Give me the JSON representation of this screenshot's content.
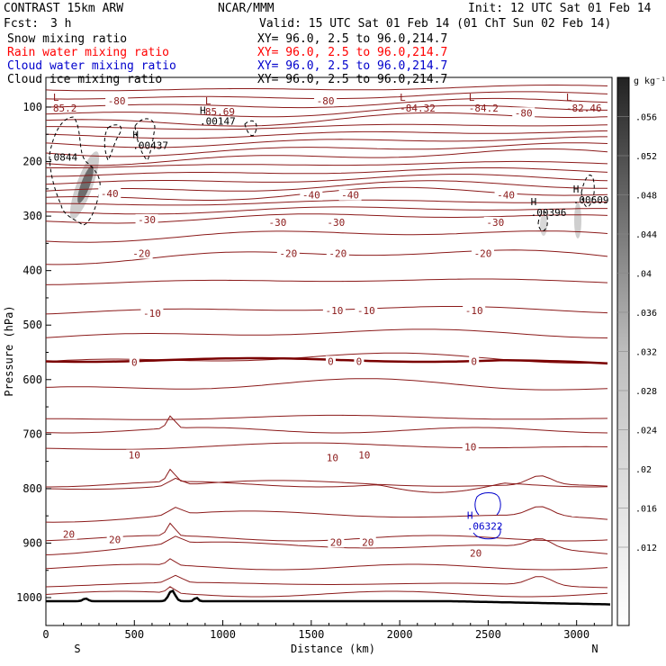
{
  "header": {
    "model": "CONTRAST 15km ARW",
    "org": "NCAR/MMM",
    "init": "Init: 12 UTC Sat 01 Feb 14",
    "fcst_label": "Fcst:",
    "fcst_value": "3 h",
    "valid": "Valid: 15 UTC Sat 01 Feb 14 (01 ChT Sun 02 Feb 14)"
  },
  "legend": {
    "items": [
      {
        "label": "Snow mixing ratio",
        "xy": "XY=  96.0,  2.5 to  96.0,214.7",
        "color": "#000000"
      },
      {
        "label": "Rain water mixing ratio",
        "xy": "XY=  96.0,  2.5 to  96.0,214.7",
        "color": "#ff0000"
      },
      {
        "label": "Cloud water mixing ratio",
        "xy": "XY=  96.0,  2.5 to  96.0,214.7",
        "color": "#0000cc"
      },
      {
        "label": "Cloud ice mixing ratio",
        "xy": "XY=  96.0,  2.5 to  96.0,214.7",
        "color": "#000000"
      }
    ]
  },
  "colors": {
    "temperature": "#8b1a1a",
    "zero_isotherm": "#7a0000",
    "cloud_water": "#0000cc",
    "ice": "#000000",
    "terrain": "#000000"
  },
  "chart_data": {
    "type": "contour_cross_section",
    "xlabel": "Distance (km)",
    "ylabel": "Pressure (hPa)",
    "xlim": [
      0,
      3200
    ],
    "ylim": [
      1050,
      50
    ],
    "xticks": [
      0,
      500,
      1000,
      1500,
      2000,
      2500,
      3000
    ],
    "yticks": [
      100,
      200,
      300,
      400,
      500,
      600,
      700,
      800,
      900,
      1000
    ],
    "endpoints": {
      "left": "S",
      "right": "N"
    },
    "temperature_levels_c": [
      -80,
      -40,
      -30,
      -20,
      -10,
      0,
      10,
      20
    ],
    "temperature_labels": [
      {
        "text": "-80",
        "x": 400,
        "p": 90
      },
      {
        "text": "-80",
        "x": 1580,
        "p": 90
      },
      {
        "text": "-80",
        "x": 2700,
        "p": 112
      },
      {
        "text": "-40",
        "x": 360,
        "p": 260
      },
      {
        "text": "-40",
        "x": 1500,
        "p": 263
      },
      {
        "text": "-40",
        "x": 1720,
        "p": 263
      },
      {
        "text": "-40",
        "x": 2600,
        "p": 263
      },
      {
        "text": "-30",
        "x": 570,
        "p": 308
      },
      {
        "text": "-30",
        "x": 1310,
        "p": 313
      },
      {
        "text": "-30",
        "x": 1640,
        "p": 313
      },
      {
        "text": "-30",
        "x": 2540,
        "p": 313
      },
      {
        "text": "-20",
        "x": 540,
        "p": 370
      },
      {
        "text": "-20",
        "x": 1370,
        "p": 370
      },
      {
        "text": "-20",
        "x": 1650,
        "p": 370
      },
      {
        "text": "-20",
        "x": 2470,
        "p": 370
      },
      {
        "text": "-10",
        "x": 600,
        "p": 480
      },
      {
        "text": "-10",
        "x": 1630,
        "p": 475
      },
      {
        "text": "-10",
        "x": 1810,
        "p": 475
      },
      {
        "text": "-10",
        "x": 2420,
        "p": 475
      },
      {
        "text": "0",
        "x": 500,
        "p": 570
      },
      {
        "text": "0",
        "x": 1610,
        "p": 568
      },
      {
        "text": "0",
        "x": 1770,
        "p": 568
      },
      {
        "text": "0",
        "x": 2420,
        "p": 568
      },
      {
        "text": "10",
        "x": 500,
        "p": 740
      },
      {
        "text": "10",
        "x": 1620,
        "p": 745
      },
      {
        "text": "10",
        "x": 1800,
        "p": 740
      },
      {
        "text": "10",
        "x": 2400,
        "p": 725
      },
      {
        "text": "20",
        "x": 130,
        "p": 885
      },
      {
        "text": "20",
        "x": 390,
        "p": 895
      },
      {
        "text": "20",
        "x": 1640,
        "p": 900
      },
      {
        "text": "20",
        "x": 1820,
        "p": 900
      },
      {
        "text": "20",
        "x": 2430,
        "p": 920
      }
    ],
    "extrema": [
      {
        "kind": "L",
        "value": "85.2",
        "x": 40,
        "p": 103,
        "color": "temperature"
      },
      {
        "kind": "L",
        "value": "85.69",
        "x": 900,
        "p": 110,
        "color": "temperature"
      },
      {
        "kind": "L",
        "value": "-84.32",
        "x": 2000,
        "p": 103,
        "color": "temperature"
      },
      {
        "kind": "L",
        "value": "-84.2",
        "x": 2390,
        "p": 103,
        "color": "temperature"
      },
      {
        "kind": "L",
        "value": "-82.46",
        "x": 2940,
        "p": 103,
        "color": "temperature"
      },
      {
        "kind": "H",
        "value": ".00147",
        "x": 870,
        "p": 127,
        "color": "ice"
      },
      {
        "kind": "H",
        "value": ".00437",
        "x": 490,
        "p": 172,
        "color": "ice"
      },
      {
        "kind": "",
        "value": ".0844",
        "x": 10,
        "p": 193,
        "color": "ice"
      },
      {
        "kind": "H",
        "value": ".00609",
        "x": 2980,
        "p": 272,
        "color": "ice"
      },
      {
        "kind": "H",
        "value": ".00396",
        "x": 2740,
        "p": 295,
        "color": "ice"
      },
      {
        "kind": "H",
        "value": ".06322",
        "x": 2380,
        "p": 870,
        "color": "cloud_water"
      }
    ],
    "colorbar": {
      "unit": "g kg⁻¹",
      "ticks": [
        ".012",
        ".016",
        ".02",
        ".024",
        ".028",
        ".032",
        ".036",
        ".04",
        ".044",
        ".048",
        ".052",
        ".056"
      ],
      "values": [
        0.012,
        0.016,
        0.02,
        0.024,
        0.028,
        0.032,
        0.036,
        0.04,
        0.044,
        0.048,
        0.052,
        0.056
      ],
      "range": [
        0.004,
        0.06
      ]
    }
  }
}
